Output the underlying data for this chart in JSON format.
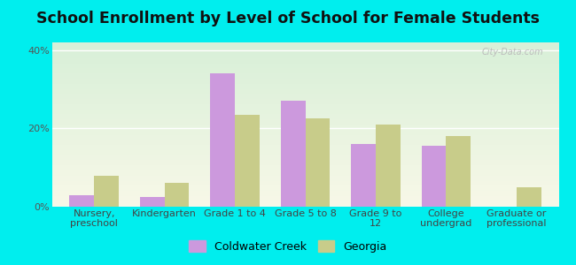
{
  "title": "School Enrollment by Level of School for Female Students",
  "categories": [
    "Nursery,\npreschool",
    "Kindergarten",
    "Grade 1 to 4",
    "Grade 5 to 8",
    "Grade 9 to\n12",
    "College\nundergrad",
    "Graduate or\nprofessional"
  ],
  "coldwater_creek": [
    3.0,
    2.5,
    34.0,
    27.0,
    16.0,
    15.5,
    0.0
  ],
  "georgia": [
    8.0,
    6.0,
    23.5,
    22.5,
    21.0,
    18.0,
    5.0
  ],
  "coldwater_color": "#cc99dd",
  "georgia_color": "#c8cc8a",
  "background_color": "#00eeee",
  "plot_bg_color": "#e8f5e8",
  "ylim": [
    0,
    42
  ],
  "yticks": [
    0,
    20,
    40
  ],
  "ytick_labels": [
    "0%",
    "20%",
    "40%"
  ],
  "legend_labels": [
    "Coldwater Creek",
    "Georgia"
  ],
  "bar_width": 0.35,
  "title_fontsize": 12.5,
  "tick_fontsize": 8,
  "legend_fontsize": 9,
  "watermark": "City-Data.com"
}
